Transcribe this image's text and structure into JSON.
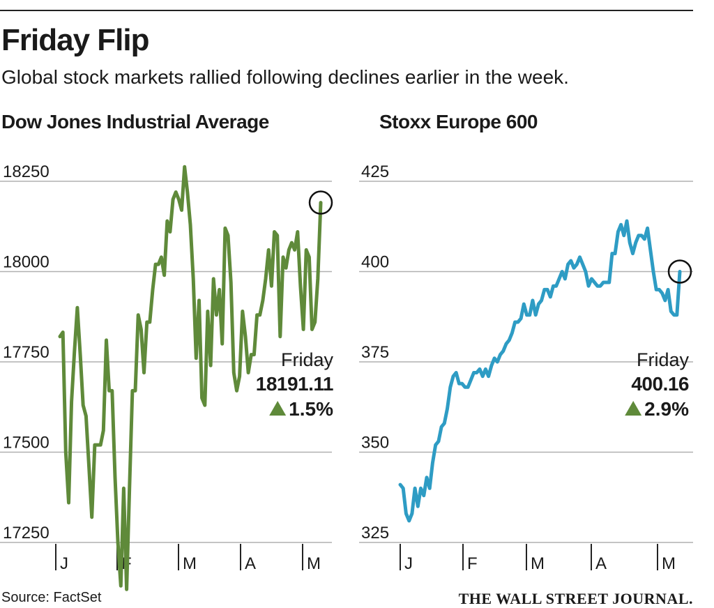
{
  "header": {
    "title": "Friday Flip",
    "subtitle": "Global stock markets rallied following declines earlier in the week."
  },
  "footer": {
    "source": "Source: FactSet",
    "brand": "THE WALL STREET JOURNAL."
  },
  "colors": {
    "dow_line": "#5f8a3a",
    "stoxx_line": "#2e9cc4",
    "up_triangle": "#5f8a3a",
    "grid": "#b0b0b0",
    "text": "#1a1a1a"
  },
  "chart_data": [
    {
      "type": "line",
      "title": "Dow Jones Industrial Average",
      "x_ticks": [
        "J",
        "F",
        "M",
        "A",
        "M"
      ],
      "y_ticks": [
        17250,
        17500,
        17750,
        18000,
        18250
      ],
      "ylim": [
        17250,
        18250
      ],
      "grid": true,
      "annotation": {
        "label": "Friday",
        "value": "18191.11",
        "change": "1.5%",
        "direction": "up"
      },
      "series": [
        {
          "values": [
            17820,
            17832,
            17500,
            17360,
            17640,
            17780,
            17900,
            17770,
            17630,
            17600,
            17460,
            17320,
            17520,
            17520,
            17520,
            17560,
            17810,
            17670,
            17670,
            17430,
            17250,
            17130,
            17400,
            17120,
            17400,
            17670,
            17670,
            17880,
            17840,
            17720,
            17860,
            17860,
            17950,
            18020,
            18020,
            18040,
            17990,
            18140,
            18110,
            18200,
            18220,
            18200,
            18170,
            18290,
            18220,
            18130,
            17980,
            17760,
            17920,
            17650,
            17630,
            17890,
            17740,
            17980,
            17880,
            17950,
            17800,
            18120,
            18100,
            17970,
            17720,
            17670,
            17710,
            17890,
            17820,
            17720,
            17770,
            17770,
            17880,
            17880,
            17920,
            17980,
            18060,
            17960,
            18110,
            18100,
            17820,
            18040,
            18010,
            18060,
            18080,
            18060,
            18110,
            17960,
            17840,
            18060,
            18040,
            17840,
            17860,
            17980,
            18191
          ]
        }
      ]
    },
    {
      "type": "line",
      "title": "Stoxx Europe 600",
      "x_ticks": [
        "J",
        "F",
        "M",
        "A",
        "M"
      ],
      "y_ticks": [
        325,
        350,
        375,
        400,
        425
      ],
      "ylim": [
        325,
        425
      ],
      "grid": true,
      "annotation": {
        "label": "Friday",
        "value": "400.16",
        "change": "2.9%",
        "direction": "up"
      },
      "series": [
        {
          "values": [
            341,
            340,
            333,
            331,
            333,
            340,
            335,
            340,
            338,
            343,
            340,
            347,
            352,
            353,
            357,
            358,
            362,
            368,
            371,
            372,
            369,
            369,
            368,
            368,
            370,
            372,
            372,
            373,
            371,
            373,
            371,
            374,
            376,
            375,
            377,
            378,
            380,
            381,
            383,
            386,
            386,
            387,
            391,
            388,
            388,
            392,
            388,
            391,
            392,
            395,
            395,
            393,
            396,
            396,
            398,
            400,
            398,
            402,
            403,
            401,
            402,
            404,
            402,
            400,
            396,
            398,
            397,
            396,
            396,
            397,
            397,
            397,
            405,
            405,
            411,
            413,
            410,
            414,
            408,
            405,
            408,
            410,
            410,
            409,
            412,
            406,
            400,
            395,
            395,
            394,
            392,
            395,
            389,
            388,
            388,
            400
          ]
        }
      ]
    }
  ]
}
